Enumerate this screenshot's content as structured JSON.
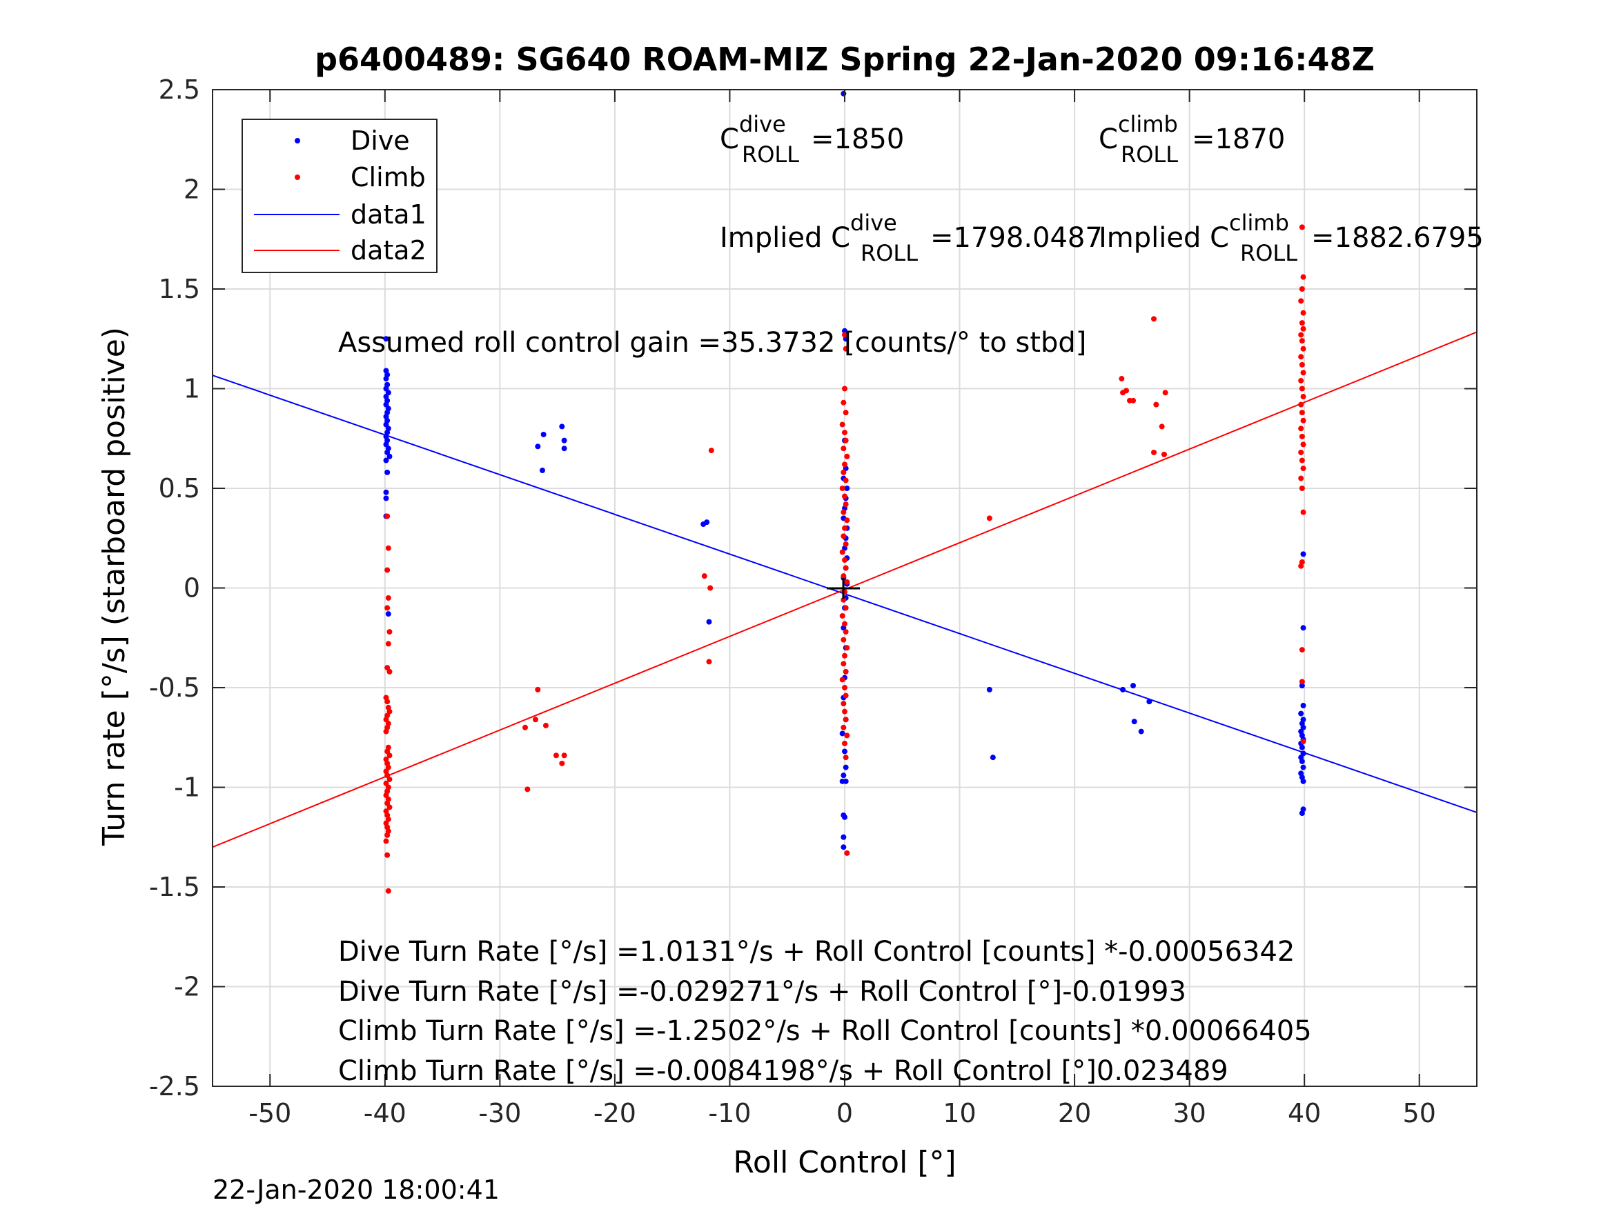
{
  "chart_data": {
    "type": "scatter",
    "title": "p6400489: SG640 ROAM-MIZ Spring 22-Jan-2020 09:16:48Z",
    "xlabel": "Roll Control [°]",
    "ylabel": "Turn rate [°/s] (starboard positive)",
    "xlim": [
      -55,
      55
    ],
    "ylim": [
      -2.5,
      2.5
    ],
    "xticks": [
      "-50",
      "-40",
      "-30",
      "-20",
      "-10",
      "0",
      "10",
      "20",
      "30",
      "40",
      "50"
    ],
    "yticks": [
      "2.5",
      "2",
      "1.5",
      "1",
      "0.5",
      "0",
      "-0.5",
      "-1",
      "-1.5",
      "-2",
      "-2.5"
    ],
    "grid": true,
    "legend_position": "top-left",
    "legend": [
      "Dive",
      "Climb",
      "data1",
      "data2"
    ],
    "colors": {
      "dive": "#0000ff",
      "climb": "#ff0000",
      "data1": "#0000ff",
      "data2": "#ff0000"
    },
    "series": [
      {
        "name": "Dive",
        "type": "scatter",
        "points": [
          [
            -39.9,
            1.25
          ],
          [
            -39.9,
            1.09
          ],
          [
            -39.8,
            1.07
          ],
          [
            -39.9,
            1.05
          ],
          [
            -39.8,
            1.02
          ],
          [
            -39.9,
            1.0
          ],
          [
            -39.7,
            0.98
          ],
          [
            -39.9,
            0.96
          ],
          [
            -39.8,
            0.94
          ],
          [
            -39.9,
            0.92
          ],
          [
            -39.7,
            0.9
          ],
          [
            -39.8,
            0.88
          ],
          [
            -39.9,
            0.86
          ],
          [
            -39.8,
            0.84
          ],
          [
            -39.9,
            0.82
          ],
          [
            -39.7,
            0.8
          ],
          [
            -39.8,
            0.78
          ],
          [
            -39.9,
            0.76
          ],
          [
            -39.8,
            0.74
          ],
          [
            -39.9,
            0.72
          ],
          [
            -39.7,
            0.7
          ],
          [
            -39.8,
            0.68
          ],
          [
            -39.6,
            0.66
          ],
          [
            -39.9,
            0.64
          ],
          [
            -39.8,
            0.58
          ],
          [
            -39.9,
            0.48
          ],
          [
            -39.9,
            0.45
          ],
          [
            -39.9,
            0.36
          ],
          [
            -39.7,
            -0.13
          ],
          [
            -26.7,
            0.71
          ],
          [
            -26.2,
            0.77
          ],
          [
            -26.3,
            0.59
          ],
          [
            -24.6,
            0.81
          ],
          [
            -24.4,
            0.74
          ],
          [
            -24.4,
            0.7
          ],
          [
            -12.3,
            0.32
          ],
          [
            -12.0,
            0.33
          ],
          [
            -11.8,
            -0.17
          ],
          [
            -0.1,
            2.48
          ],
          [
            0.0,
            1.29
          ],
          [
            0.1,
            1.25
          ],
          [
            0.0,
            0.74
          ],
          [
            0.1,
            0.6
          ],
          [
            -0.1,
            0.55
          ],
          [
            0.2,
            0.5
          ],
          [
            0.1,
            0.45
          ],
          [
            0.0,
            0.4
          ],
          [
            -0.1,
            0.35
          ],
          [
            0.2,
            0.3
          ],
          [
            0.1,
            0.25
          ],
          [
            0.0,
            0.2
          ],
          [
            0.2,
            0.15
          ],
          [
            0.1,
            0.1
          ],
          [
            -0.1,
            0.05
          ],
          [
            0.2,
            0.02
          ],
          [
            0.1,
            -0.05
          ],
          [
            0.0,
            -0.1
          ],
          [
            -0.1,
            -0.2
          ],
          [
            0.1,
            -0.3
          ],
          [
            0.0,
            -0.45
          ],
          [
            -0.1,
            -0.55
          ],
          [
            0.1,
            -0.66
          ],
          [
            -0.2,
            -0.73
          ],
          [
            0.0,
            -0.82
          ],
          [
            0.1,
            -0.9
          ],
          [
            -0.1,
            -0.94
          ],
          [
            -0.2,
            -0.97
          ],
          [
            0.1,
            -0.97
          ],
          [
            -0.1,
            -1.14
          ],
          [
            0.0,
            -1.15
          ],
          [
            -0.1,
            -1.25
          ],
          [
            -0.1,
            -1.3
          ],
          [
            12.6,
            -0.51
          ],
          [
            12.9,
            -0.85
          ],
          [
            24.2,
            -0.51
          ],
          [
            25.1,
            -0.49
          ],
          [
            25.2,
            -0.67
          ],
          [
            25.8,
            -0.72
          ],
          [
            26.5,
            -0.57
          ],
          [
            39.9,
            0.17
          ],
          [
            39.9,
            -0.2
          ],
          [
            39.8,
            -0.49
          ],
          [
            39.9,
            -0.59
          ],
          [
            39.7,
            -0.63
          ],
          [
            39.9,
            -0.66
          ],
          [
            39.8,
            -0.68
          ],
          [
            39.9,
            -0.7
          ],
          [
            39.7,
            -0.72
          ],
          [
            39.8,
            -0.74
          ],
          [
            39.9,
            -0.76
          ],
          [
            39.7,
            -0.78
          ],
          [
            39.8,
            -0.8
          ],
          [
            39.9,
            -0.83
          ],
          [
            39.7,
            -0.85
          ],
          [
            39.8,
            -0.87
          ],
          [
            39.9,
            -0.9
          ],
          [
            39.7,
            -0.93
          ],
          [
            39.8,
            -0.95
          ],
          [
            39.9,
            -0.97
          ],
          [
            39.9,
            -1.11
          ],
          [
            39.8,
            -1.13
          ]
        ]
      },
      {
        "name": "Climb",
        "type": "scatter",
        "points": [
          [
            -39.8,
            0.36
          ],
          [
            -39.7,
            0.2
          ],
          [
            -39.8,
            0.09
          ],
          [
            -39.7,
            -0.05
          ],
          [
            -39.8,
            -0.1
          ],
          [
            -39.6,
            -0.22
          ],
          [
            -39.7,
            -0.28
          ],
          [
            -39.8,
            -0.4
          ],
          [
            -39.6,
            -0.42
          ],
          [
            -39.9,
            -0.55
          ],
          [
            -39.8,
            -0.57
          ],
          [
            -39.7,
            -0.6
          ],
          [
            -39.6,
            -0.62
          ],
          [
            -39.8,
            -0.64
          ],
          [
            -39.9,
            -0.66
          ],
          [
            -39.7,
            -0.68
          ],
          [
            -39.8,
            -0.7
          ],
          [
            -39.9,
            -0.72
          ],
          [
            -39.7,
            -0.8
          ],
          [
            -39.8,
            -0.82
          ],
          [
            -39.6,
            -0.84
          ],
          [
            -39.9,
            -0.86
          ],
          [
            -39.8,
            -0.88
          ],
          [
            -39.7,
            -0.9
          ],
          [
            -39.9,
            -0.92
          ],
          [
            -39.8,
            -0.94
          ],
          [
            -39.6,
            -0.96
          ],
          [
            -39.9,
            -0.98
          ],
          [
            -39.7,
            -1.0
          ],
          [
            -39.8,
            -1.02
          ],
          [
            -39.9,
            -1.04
          ],
          [
            -39.7,
            -1.06
          ],
          [
            -39.8,
            -1.08
          ],
          [
            -39.6,
            -1.1
          ],
          [
            -39.9,
            -1.12
          ],
          [
            -39.8,
            -1.14
          ],
          [
            -39.7,
            -1.16
          ],
          [
            -39.9,
            -1.18
          ],
          [
            -39.8,
            -1.2
          ],
          [
            -39.7,
            -1.22
          ],
          [
            -39.8,
            -1.24
          ],
          [
            -39.9,
            -1.27
          ],
          [
            -39.8,
            -1.34
          ],
          [
            -39.7,
            -1.52
          ],
          [
            -27.8,
            -0.7
          ],
          [
            -27.6,
            -1.01
          ],
          [
            -26.9,
            -0.66
          ],
          [
            -26.7,
            -0.51
          ],
          [
            -26.0,
            -0.69
          ],
          [
            -25.1,
            -0.84
          ],
          [
            -24.6,
            -0.88
          ],
          [
            -24.4,
            -0.84
          ],
          [
            -12.2,
            0.06
          ],
          [
            -11.7,
            0.0
          ],
          [
            -11.8,
            -0.37
          ],
          [
            -11.6,
            0.69
          ],
          [
            0.0,
            1.27
          ],
          [
            0.1,
            1.2
          ],
          [
            0.0,
            1.0
          ],
          [
            -0.1,
            0.93
          ],
          [
            0.1,
            0.88
          ],
          [
            -0.2,
            0.82
          ],
          [
            0.0,
            0.78
          ],
          [
            0.1,
            0.74
          ],
          [
            -0.1,
            0.7
          ],
          [
            0.2,
            0.66
          ],
          [
            0.0,
            0.62
          ],
          [
            -0.1,
            0.58
          ],
          [
            0.1,
            0.54
          ],
          [
            -0.2,
            0.5
          ],
          [
            0.0,
            0.46
          ],
          [
            0.1,
            0.42
          ],
          [
            -0.1,
            0.38
          ],
          [
            0.2,
            0.34
          ],
          [
            0.0,
            0.3
          ],
          [
            -0.1,
            0.26
          ],
          [
            0.1,
            0.22
          ],
          [
            -0.2,
            0.18
          ],
          [
            0.0,
            0.14
          ],
          [
            0.1,
            0.1
          ],
          [
            -0.1,
            0.06
          ],
          [
            0.2,
            0.03
          ],
          [
            0.0,
            -0.02
          ],
          [
            -0.1,
            -0.06
          ],
          [
            0.1,
            -0.1
          ],
          [
            -0.2,
            -0.14
          ],
          [
            0.0,
            -0.18
          ],
          [
            0.1,
            -0.22
          ],
          [
            -0.1,
            -0.26
          ],
          [
            0.2,
            -0.3
          ],
          [
            0.0,
            -0.34
          ],
          [
            -0.1,
            -0.38
          ],
          [
            0.1,
            -0.42
          ],
          [
            -0.2,
            -0.46
          ],
          [
            0.0,
            -0.5
          ],
          [
            0.1,
            -0.54
          ],
          [
            -0.1,
            -0.58
          ],
          [
            0.0,
            -0.62
          ],
          [
            0.1,
            -0.66
          ],
          [
            -0.1,
            -0.7
          ],
          [
            0.2,
            -0.74
          ],
          [
            0.0,
            -0.78
          ],
          [
            0.1,
            -0.85
          ],
          [
            0.2,
            -1.33
          ],
          [
            12.6,
            0.35
          ],
          [
            24.1,
            1.05
          ],
          [
            24.2,
            0.98
          ],
          [
            24.5,
            0.99
          ],
          [
            24.8,
            0.94
          ],
          [
            25.1,
            0.94
          ],
          [
            26.9,
            1.35
          ],
          [
            27.1,
            0.92
          ],
          [
            27.6,
            0.81
          ],
          [
            27.9,
            0.98
          ],
          [
            26.9,
            0.68
          ],
          [
            27.8,
            0.67
          ],
          [
            39.8,
            1.81
          ],
          [
            39.9,
            1.56
          ],
          [
            39.8,
            1.5
          ],
          [
            39.7,
            1.44
          ],
          [
            39.9,
            1.38
          ],
          [
            39.8,
            1.33
          ],
          [
            39.9,
            1.3
          ],
          [
            39.7,
            1.27
          ],
          [
            39.8,
            1.24
          ],
          [
            39.9,
            1.2
          ],
          [
            39.7,
            1.16
          ],
          [
            39.8,
            1.12
          ],
          [
            39.9,
            1.08
          ],
          [
            39.7,
            1.04
          ],
          [
            39.8,
            1.0
          ],
          [
            39.9,
            0.96
          ],
          [
            39.7,
            0.92
          ],
          [
            39.8,
            0.88
          ],
          [
            39.9,
            0.84
          ],
          [
            39.7,
            0.8
          ],
          [
            39.8,
            0.76
          ],
          [
            39.9,
            0.72
          ],
          [
            39.7,
            0.68
          ],
          [
            39.8,
            0.64
          ],
          [
            39.9,
            0.6
          ],
          [
            39.7,
            0.55
          ],
          [
            39.8,
            0.5
          ],
          [
            39.9,
            0.38
          ],
          [
            39.8,
            0.13
          ],
          [
            39.7,
            0.11
          ],
          [
            39.8,
            -0.31
          ],
          [
            39.8,
            -0.47
          ],
          [
            39.9,
            -0.77
          ]
        ]
      },
      {
        "name": "data1",
        "type": "line",
        "points": [
          [
            -55,
            1.067
          ],
          [
            55,
            -1.126
          ]
        ]
      },
      {
        "name": "data2",
        "type": "line",
        "points": [
          [
            -55,
            -1.3
          ],
          [
            55,
            1.284
          ]
        ]
      }
    ],
    "annotations": {
      "c_dive_label": "C",
      "c_dive_sup": "dive",
      "c_dive_sub": "ROLL",
      "c_dive_value": "=1850",
      "c_climb_label": "C",
      "c_climb_sup": "climb",
      "c_climb_sub": "ROLL",
      "c_climb_value": "=1870",
      "implied_dive_label": "Implied C",
      "implied_dive_sup": "dive",
      "implied_dive_sub": "ROLL",
      "implied_dive_value": "=1798.0487",
      "implied_climb_label": "Implied C",
      "implied_climb_sup": "climb",
      "implied_climb_sub": "ROLL",
      "implied_climb_value": "=1882.6795",
      "gain": "Assumed roll control gain =35.3732 [counts/° to stbd]",
      "fit_lines": [
        "Dive Turn Rate [°/s] =1.0131°/s + Roll Control [counts] *-0.00056342",
        "Dive Turn Rate [°/s] =-0.029271°/s + Roll Control [°]-0.01993",
        "Climb Turn Rate [°/s] =-1.2502°/s + Roll Control [counts] *0.00066405",
        "Climb Turn Rate [°/s] =-0.0084198°/s + Roll Control [°]0.023489"
      ]
    },
    "timestamp": "22-Jan-2020 18:00:41"
  }
}
